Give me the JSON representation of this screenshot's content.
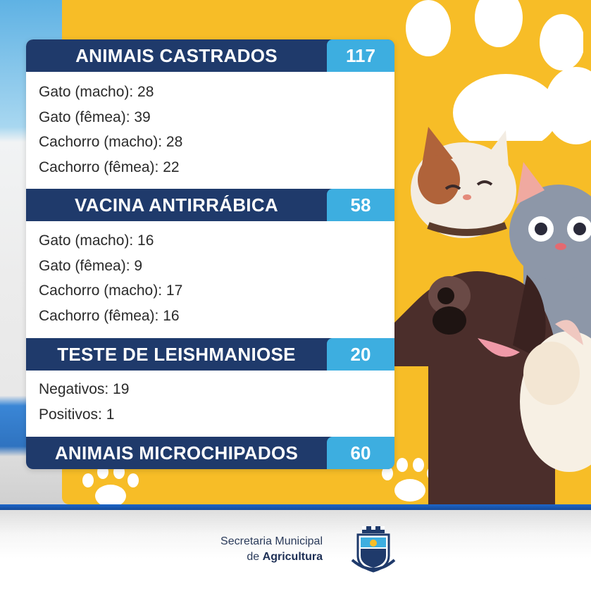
{
  "sections": [
    {
      "title": "ANIMAIS CASTRADOS",
      "count": "117",
      "items": [
        "Gato (macho): 28",
        "Gato (fêmea): 39",
        "Cachorro (macho): 28",
        "Cachorro (fêmea): 22"
      ]
    },
    {
      "title": "VACINA ANTIRRÁBICA",
      "count": "58",
      "items": [
        "Gato (macho): 16",
        "Gato (fêmea): 9",
        "Cachorro (macho): 17",
        "Cachorro (fêmea): 16"
      ]
    },
    {
      "title": "TESTE DE LEISHMANIOSE",
      "count": "20",
      "items": [
        "Negativos: 19",
        "Positivos: 1"
      ]
    },
    {
      "title": "ANIMAIS MICROCHIPADOS",
      "count": "60",
      "items": []
    }
  ],
  "footer": {
    "line1": "Secretaria Municipal",
    "line2_prefix": "de ",
    "line2_bold": "Agricultura"
  },
  "colors": {
    "header_navy": "#1f3a6b",
    "count_blue": "#3daee0",
    "panel_yellow": "#f7bd27"
  },
  "icons": [
    "paw-print-icon",
    "municipal-crest-icon"
  ]
}
